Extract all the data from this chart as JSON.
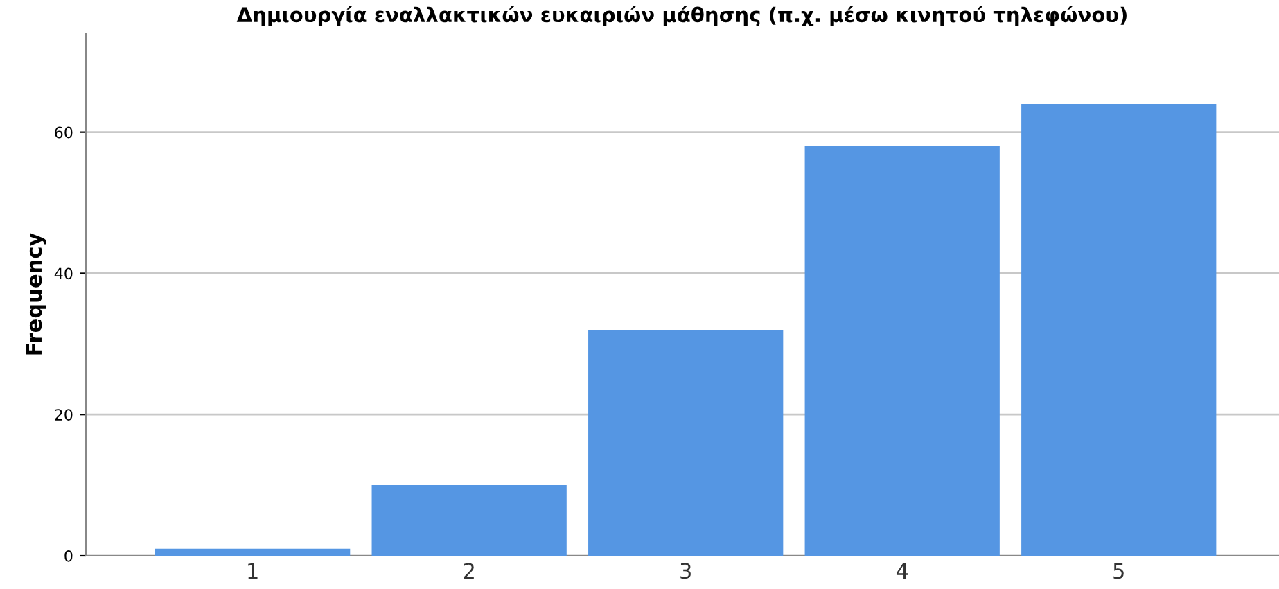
{
  "chart_data": {
    "type": "bar",
    "title": "Δημιουργία εναλλακτικών ευκαιριών μάθησης (π.χ. μέσω κινητού τηλεφώνου)",
    "ylabel": "Frequency",
    "categories": [
      "1",
      "2",
      "3",
      "4",
      "5"
    ],
    "values": [
      1,
      10,
      32,
      58,
      64
    ],
    "color": "#5596e3",
    "ylim": [
      0,
      74
    ],
    "yticks": [
      0,
      20,
      40,
      60
    ],
    "grid": "y"
  }
}
